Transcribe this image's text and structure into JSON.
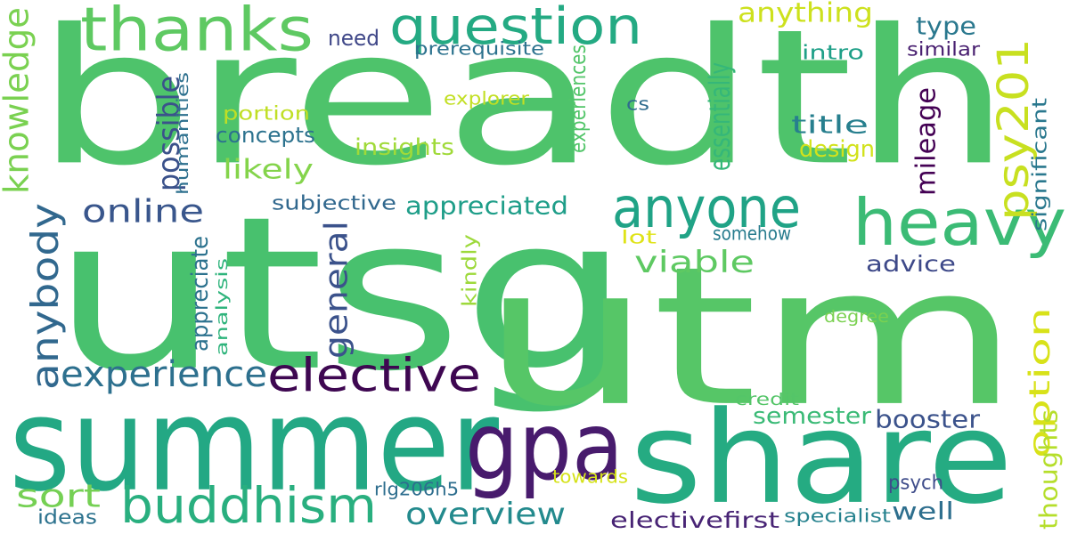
{
  "words": [
    {
      "text": "breadth",
      "color": "#4ec36b"
    },
    {
      "text": "utsg",
      "color": "#48c16e"
    },
    {
      "text": "utm",
      "color": "#56c667"
    },
    {
      "text": "summer",
      "color": "#23a884"
    },
    {
      "text": "share",
      "color": "#25ab82"
    },
    {
      "text": "gpa",
      "color": "#481b6d"
    },
    {
      "text": "thanks",
      "color": "#5ec962"
    },
    {
      "text": "question",
      "color": "#24aa83"
    },
    {
      "text": "heavy",
      "color": "#3bbb75"
    },
    {
      "text": "anyone",
      "color": "#20a386"
    },
    {
      "text": "psy201",
      "color": "#c8e020"
    },
    {
      "text": "elective",
      "color": "#3e0751"
    },
    {
      "text": "buddhism",
      "color": "#29af7f"
    },
    {
      "text": "experience",
      "color": "#2d708e"
    },
    {
      "text": "anybody",
      "color": "#31688e"
    },
    {
      "text": "general",
      "color": "#3b528b"
    },
    {
      "text": "knowledge",
      "color": "#7ad151"
    },
    {
      "text": "online",
      "color": "#39568c"
    },
    {
      "text": "viable",
      "color": "#5ec962"
    },
    {
      "text": "appreciated",
      "color": "#1f9e89"
    },
    {
      "text": "option",
      "color": "#d8e219"
    },
    {
      "text": "overview",
      "color": "#238a8d"
    },
    {
      "text": "sort",
      "color": "#75d054"
    },
    {
      "text": "possible",
      "color": "#3b528b"
    },
    {
      "text": "likely",
      "color": "#84d44b"
    },
    {
      "text": "anything",
      "color": "#cde11d"
    },
    {
      "text": "essentially",
      "color": "#35b779"
    },
    {
      "text": "title",
      "color": "#277f8e"
    },
    {
      "text": "mileage",
      "color": "#440154"
    },
    {
      "text": "type",
      "color": "#2a788e"
    },
    {
      "text": "intro",
      "color": "#1fa088"
    },
    {
      "text": "semester",
      "color": "#3aba76"
    },
    {
      "text": "booster",
      "color": "#3b528b"
    },
    {
      "text": "advice",
      "color": "#3e4989"
    },
    {
      "text": "thoughts",
      "color": "#b5de2b"
    },
    {
      "text": "subjective",
      "color": "#31688e"
    },
    {
      "text": "concepts",
      "color": "#2c728e"
    },
    {
      "text": "insights",
      "color": "#a0da39"
    },
    {
      "text": "design",
      "color": "#d2e21b"
    },
    {
      "text": "appreciate",
      "color": "#2c728e"
    },
    {
      "text": "analysis",
      "color": "#2fb47c"
    },
    {
      "text": "significant",
      "color": "#2a788e"
    },
    {
      "text": "need",
      "color": "#3f4788"
    },
    {
      "text": "prerequisite",
      "color": "#2c728e"
    },
    {
      "text": "experiences",
      "color": "#52c569"
    },
    {
      "text": "humanities",
      "color": "#2d708e"
    },
    {
      "text": "portion",
      "color": "#c0df25"
    },
    {
      "text": "explorer",
      "color": "#c2df23"
    },
    {
      "text": "cs",
      "color": "#2f6c8e"
    },
    {
      "text": "similar",
      "color": "#481f70"
    },
    {
      "text": "kindly",
      "color": "#9dd93b"
    },
    {
      "text": "lot",
      "color": "#dfe318"
    },
    {
      "text": "somehow",
      "color": "#287c8e"
    },
    {
      "text": "degree",
      "color": "#7ad151"
    },
    {
      "text": "credit",
      "color": "#54c568"
    },
    {
      "text": "towards",
      "color": "#d5e21a"
    },
    {
      "text": "rlg206h5",
      "color": "#2e6e8e"
    },
    {
      "text": "psych",
      "color": "#3e4c8a"
    },
    {
      "text": "well",
      "color": "#2e6f8e"
    },
    {
      "text": "ideas",
      "color": "#2c728e"
    },
    {
      "text": "electivefirst",
      "color": "#482475"
    },
    {
      "text": "specialist",
      "color": "#26828e"
    }
  ]
}
